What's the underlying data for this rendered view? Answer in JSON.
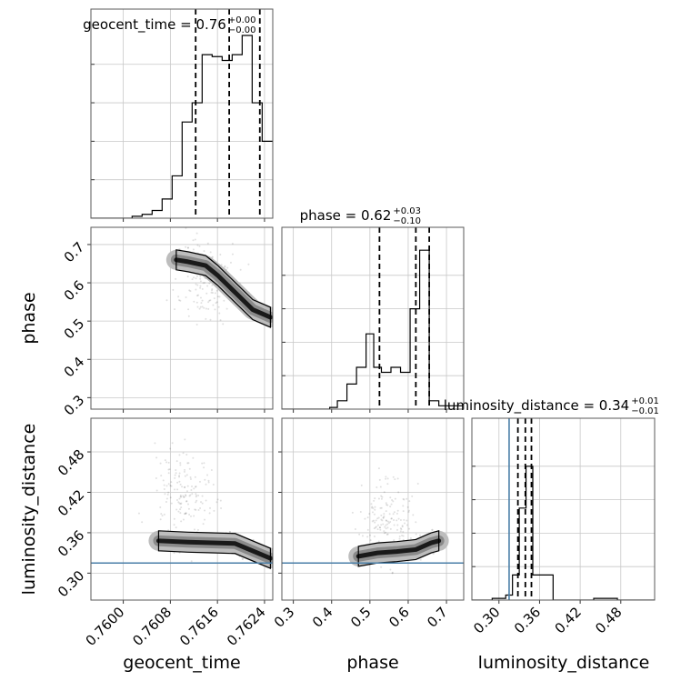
{
  "chart_data": {
    "type": "corner",
    "parameters": [
      "geocent_time",
      "phase",
      "luminosity_distance"
    ],
    "axis_labels": {
      "geocent_time": "geocent_time",
      "phase": "phase",
      "luminosity_distance": "luminosity_distance"
    },
    "titles": [
      {
        "param": "geocent_time",
        "text": "geocent_time = 0.76",
        "plus": "+0.00",
        "minus": "−0.00"
      },
      {
        "param": "phase",
        "text": "phase = 0.62",
        "plus": "+0.03",
        "minus": "−0.10"
      },
      {
        "param": "luminosity_distance",
        "text": "luminosity_distance = 0.34",
        "plus": "+0.01",
        "minus": "−0.01"
      }
    ],
    "ranges": {
      "geocent_time": [
        0.75945,
        0.76254
      ],
      "phase": [
        0.27,
        0.745
      ],
      "luminosity_distance": [
        0.26,
        0.53
      ]
    },
    "ticks": {
      "geocent_time": [
        0.76,
        0.7608,
        0.7616,
        0.7624
      ],
      "phase": [
        0.3,
        0.4,
        0.5,
        0.6,
        0.7
      ],
      "luminosity_distance": [
        0.3,
        0.36,
        0.42,
        0.48
      ]
    },
    "tick_labels": {
      "geocent_time_x": [
        "0.7600",
        "0.7608",
        "0.7616",
        "0.7624"
      ],
      "phase_x": [
        "0.3",
        "0.4",
        "0.5",
        "0.6",
        "0.7"
      ],
      "phase_y": [
        "0.3",
        "0.4",
        "0.5",
        "0.6",
        "0.7"
      ],
      "luminosity_distance_x": [
        "0.30",
        "0.36",
        "0.42",
        "0.48"
      ],
      "luminosity_distance_y": [
        "0.30",
        "0.36",
        "0.42",
        "0.48"
      ]
    },
    "quantiles": {
      "geocent_time": [
        0.76123,
        0.7618,
        0.76232
      ],
      "phase": [
        0.525,
        0.62,
        0.655
      ],
      "luminosity_distance": [
        0.328,
        0.339,
        0.348
      ]
    },
    "truths": {
      "luminosity_distance": 0.315
    },
    "histograms": {
      "geocent_time": {
        "edges": [
          0.75945,
          0.76015,
          0.76032,
          0.76049,
          0.76066,
          0.76083,
          0.761,
          0.76117,
          0.76134,
          0.76151,
          0.76168,
          0.76185,
          0.76202,
          0.76219,
          0.76236,
          0.76254
        ],
        "heights": [
          0.0,
          0.01,
          0.02,
          0.04,
          0.1,
          0.22,
          0.5,
          0.6,
          0.85,
          0.84,
          0.82,
          0.85,
          0.95,
          0.6,
          0.4
        ]
      },
      "phase": {
        "edges": [
          0.27,
          0.395,
          0.415,
          0.44,
          0.465,
          0.49,
          0.51,
          0.53,
          0.555,
          0.58,
          0.605,
          0.63,
          0.655,
          0.68,
          0.745
        ],
        "heights": [
          0.0,
          0.01,
          0.05,
          0.15,
          0.25,
          0.45,
          0.25,
          0.22,
          0.25,
          0.22,
          0.6,
          0.95,
          0.05,
          0.02
        ]
      },
      "luminosity_distance": {
        "edges": [
          0.26,
          0.29,
          0.3,
          0.31,
          0.32,
          0.33,
          0.34,
          0.35,
          0.38,
          0.44,
          0.475,
          0.53
        ],
        "heights": [
          0.0,
          0.01,
          0.01,
          0.03,
          0.15,
          0.55,
          0.8,
          0.15,
          0.0,
          0.01,
          0.0
        ]
      }
    },
    "contours_2d": {
      "phase_vs_geocent_time": {
        "ridge": [
          [
            0.7609,
            0.66
          ],
          [
            0.7611,
            0.655
          ],
          [
            0.7614,
            0.645
          ],
          [
            0.7616,
            0.62
          ],
          [
            0.7618,
            0.59
          ],
          [
            0.762,
            0.56
          ],
          [
            0.7622,
            0.53
          ],
          [
            0.7625,
            0.51
          ]
        ],
        "scatter_center": [
          0.7614,
          0.6
        ]
      },
      "luminosity_distance_vs_geocent_time": {
        "ridge": [
          [
            0.7606,
            0.348
          ],
          [
            0.7611,
            0.346
          ],
          [
            0.7615,
            0.345
          ],
          [
            0.7619,
            0.344
          ],
          [
            0.7622,
            0.333
          ],
          [
            0.7625,
            0.322
          ]
        ],
        "scatter_center": [
          0.761,
          0.42
        ]
      },
      "luminosity_distance_vs_phase": {
        "ridge": [
          [
            0.47,
            0.325
          ],
          [
            0.52,
            0.33
          ],
          [
            0.57,
            0.332
          ],
          [
            0.62,
            0.335
          ],
          [
            0.66,
            0.345
          ],
          [
            0.68,
            0.348
          ]
        ],
        "scatter_center": [
          0.55,
          0.38
        ]
      }
    },
    "grid": true
  }
}
